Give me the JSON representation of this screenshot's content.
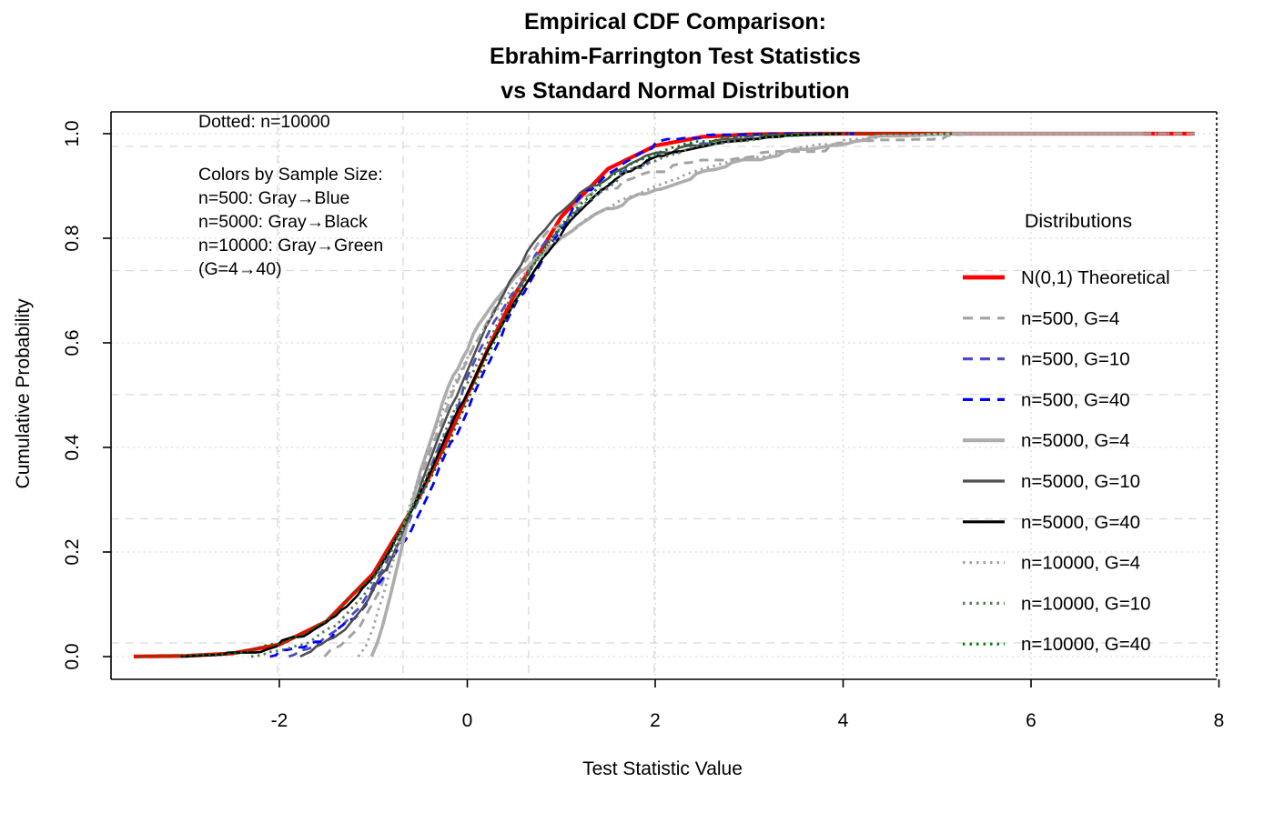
{
  "figure": {
    "title_lines": [
      "Empirical CDF Comparison:",
      "Ebrahim-Farrington Test Statistics",
      "vs Standard Normal Distribution"
    ],
    "annotations": {
      "dotted_note": "Dotted: n=10000",
      "color_key": [
        "Colors by Sample Size:",
        "n=500: Gray→Blue",
        "n=5000: Gray→Black",
        "n=10000: Gray→Green",
        "(G=4→40)"
      ]
    },
    "legend": {
      "header": "Distributions"
    },
    "colors": {
      "grid": "#D9D9D9",
      "box": "#000000",
      "theoretical": "#FF0000"
    }
  },
  "chart_data": {
    "type": "line",
    "title": "Empirical CDF Comparison: Ebrahim-Farrington Test Statistics vs Standard Normal Distribution",
    "xlabel": "Test Statistic Value",
    "ylabel": "Cumulative Probability",
    "xlim": [
      -3.8,
      8.1
    ],
    "ylim": [
      -0.04,
      1.04
    ],
    "x_ticks": [
      -2,
      0,
      2,
      4,
      6,
      8
    ],
    "x_tick_labels": [
      "-2",
      "0",
      "2",
      "4",
      "6",
      "8"
    ],
    "y_ticks": [
      0.0,
      0.2,
      0.4,
      0.6,
      0.8,
      1.0
    ],
    "y_tick_labels": [
      "0.0",
      "0.2",
      "0.4",
      "0.6",
      "0.8",
      "1.0"
    ],
    "grid": "light-gray dotted at ticks plus light-gray dashed secondary grid",
    "legend_position": "right",
    "series": [
      {
        "name": "N(0,1) Theoretical",
        "color": "#FF0000",
        "linetype": "solid",
        "width": 4.2,
        "noise": 0,
        "points": [
          [
            -3.55,
            0.0002
          ],
          [
            -3,
            0.0013
          ],
          [
            -2.5,
            0.006
          ],
          [
            -2,
            0.023
          ],
          [
            -1.5,
            0.067
          ],
          [
            -1,
            0.159
          ],
          [
            -0.5,
            0.309
          ],
          [
            -0.25,
            0.4
          ],
          [
            0,
            0.5
          ],
          [
            0.25,
            0.6
          ],
          [
            0.5,
            0.691
          ],
          [
            1,
            0.841
          ],
          [
            1.5,
            0.933
          ],
          [
            2,
            0.977
          ],
          [
            2.5,
            0.994
          ],
          [
            3,
            0.9987
          ],
          [
            3.6,
            1
          ],
          [
            7.74,
            1
          ]
        ]
      },
      {
        "name": "n=500, G=4",
        "color": "#A3A3A3",
        "linetype": "dashed",
        "width": 3,
        "noise": 0.01,
        "points": [
          [
            -1.52,
            0
          ],
          [
            -1.35,
            0.015
          ],
          [
            -1.15,
            0.05
          ],
          [
            -0.95,
            0.115
          ],
          [
            -0.75,
            0.21
          ],
          [
            -0.55,
            0.315
          ],
          [
            -0.35,
            0.415
          ],
          [
            -0.15,
            0.505
          ],
          [
            0.05,
            0.585
          ],
          [
            0.35,
            0.685
          ],
          [
            0.65,
            0.765
          ],
          [
            0.95,
            0.83
          ],
          [
            1.25,
            0.872
          ],
          [
            1.6,
            0.9
          ],
          [
            2,
            0.923
          ],
          [
            2.5,
            0.942
          ],
          [
            3,
            0.955
          ],
          [
            3.5,
            0.965
          ],
          [
            4,
            0.978
          ],
          [
            4.5,
            0.988
          ],
          [
            5,
            0.995
          ],
          [
            5.4,
            1
          ],
          [
            7.74,
            1
          ]
        ]
      },
      {
        "name": "n=500, G=10",
        "color": "#4B4BC8",
        "linetype": "dashed",
        "width": 2.8,
        "noise": 0.01,
        "points": [
          [
            -1.9,
            0
          ],
          [
            -1.65,
            0.015
          ],
          [
            -1.4,
            0.045
          ],
          [
            -1.15,
            0.095
          ],
          [
            -0.9,
            0.165
          ],
          [
            -0.65,
            0.25
          ],
          [
            -0.4,
            0.35
          ],
          [
            -0.15,
            0.465
          ],
          [
            0.1,
            0.565
          ],
          [
            0.35,
            0.655
          ],
          [
            0.6,
            0.73
          ],
          [
            0.9,
            0.8
          ],
          [
            1.2,
            0.862
          ],
          [
            1.5,
            0.905
          ],
          [
            1.9,
            0.945
          ],
          [
            2.3,
            0.968
          ],
          [
            2.8,
            0.985
          ],
          [
            3.3,
            0.994
          ],
          [
            3.8,
            1
          ]
        ]
      },
      {
        "name": "n=500, G=40",
        "color": "#0000FF",
        "linetype": "dashed",
        "width": 2.8,
        "noise": 0.01,
        "points": [
          [
            -2.1,
            0
          ],
          [
            -1.8,
            0.012
          ],
          [
            -1.5,
            0.038
          ],
          [
            -1.2,
            0.082
          ],
          [
            -0.9,
            0.148
          ],
          [
            -0.6,
            0.238
          ],
          [
            -0.3,
            0.352
          ],
          [
            0,
            0.472
          ],
          [
            0.3,
            0.592
          ],
          [
            0.6,
            0.7
          ],
          [
            0.9,
            0.795
          ],
          [
            1.2,
            0.872
          ],
          [
            1.5,
            0.932
          ],
          [
            1.9,
            0.973
          ],
          [
            2.3,
            0.991
          ],
          [
            2.8,
            0.998
          ],
          [
            3.4,
            1
          ],
          [
            4.2,
            1
          ]
        ]
      },
      {
        "name": "n=5000, G=4",
        "color": "#ADADAD",
        "linetype": "solid",
        "width": 3.6,
        "noise": 0.006,
        "points": [
          [
            -1.02,
            0
          ],
          [
            -0.96,
            0.025
          ],
          [
            -0.9,
            0.06
          ],
          [
            -0.82,
            0.115
          ],
          [
            -0.74,
            0.175
          ],
          [
            -0.65,
            0.245
          ],
          [
            -0.55,
            0.315
          ],
          [
            -0.45,
            0.385
          ],
          [
            -0.33,
            0.45
          ],
          [
            -0.2,
            0.515
          ],
          [
            -0.05,
            0.575
          ],
          [
            0.12,
            0.63
          ],
          [
            0.3,
            0.675
          ],
          [
            0.5,
            0.72
          ],
          [
            0.75,
            0.765
          ],
          [
            1,
            0.8
          ],
          [
            1.3,
            0.835
          ],
          [
            1.6,
            0.862
          ],
          [
            2,
            0.895
          ],
          [
            2.5,
            0.925
          ],
          [
            3,
            0.948
          ],
          [
            3.5,
            0.965
          ],
          [
            4,
            0.982
          ],
          [
            4.4,
            0.992
          ],
          [
            4.9,
            0.998
          ],
          [
            5.2,
            1
          ],
          [
            7.2,
            1
          ]
        ]
      },
      {
        "name": "n=5000, G=10",
        "color": "#4F4F4F",
        "linetype": "solid",
        "width": 2.6,
        "noise": 0.006,
        "points": [
          [
            -1.78,
            0
          ],
          [
            -1.55,
            0.018
          ],
          [
            -1.3,
            0.05
          ],
          [
            -1.05,
            0.105
          ],
          [
            -0.8,
            0.195
          ],
          [
            -0.55,
            0.3
          ],
          [
            -0.3,
            0.42
          ],
          [
            -0.05,
            0.53
          ],
          [
            0.2,
            0.635
          ],
          [
            0.45,
            0.72
          ],
          [
            0.7,
            0.785
          ],
          [
            0.95,
            0.84
          ],
          [
            1.2,
            0.882
          ],
          [
            1.5,
            0.918
          ],
          [
            1.9,
            0.952
          ],
          [
            2.3,
            0.973
          ],
          [
            2.8,
            0.988
          ],
          [
            3.3,
            0.996
          ],
          [
            3.6,
            1
          ]
        ]
      },
      {
        "name": "n=5000, G=40",
        "color": "#000000",
        "linetype": "solid",
        "width": 2.6,
        "noise": 0.005,
        "points": [
          [
            -3.05,
            0
          ],
          [
            -2.6,
            0.004
          ],
          [
            -2.2,
            0.013
          ],
          [
            -1.8,
            0.036
          ],
          [
            -1.4,
            0.078
          ],
          [
            -1,
            0.152
          ],
          [
            -0.7,
            0.24
          ],
          [
            -0.4,
            0.35
          ],
          [
            -0.1,
            0.47
          ],
          [
            0.2,
            0.582
          ],
          [
            0.5,
            0.678
          ],
          [
            0.8,
            0.762
          ],
          [
            1.1,
            0.832
          ],
          [
            1.4,
            0.888
          ],
          [
            1.8,
            0.938
          ],
          [
            2.2,
            0.968
          ],
          [
            2.7,
            0.987
          ],
          [
            3.2,
            0.995
          ],
          [
            4,
            1
          ]
        ]
      },
      {
        "name": "n=10000, G=4",
        "color": "#A3A3A3",
        "linetype": "dotted",
        "width": 2.8,
        "noise": 0.004,
        "points": [
          [
            -1.16,
            0
          ],
          [
            -1.08,
            0.022
          ],
          [
            -1,
            0.058
          ],
          [
            -0.9,
            0.112
          ],
          [
            -0.8,
            0.175
          ],
          [
            -0.68,
            0.25
          ],
          [
            -0.55,
            0.325
          ],
          [
            -0.42,
            0.395
          ],
          [
            -0.28,
            0.46
          ],
          [
            -0.12,
            0.525
          ],
          [
            0.05,
            0.585
          ],
          [
            0.25,
            0.645
          ],
          [
            0.5,
            0.71
          ],
          [
            0.75,
            0.762
          ],
          [
            1,
            0.803
          ],
          [
            1.3,
            0.84
          ],
          [
            1.6,
            0.868
          ],
          [
            2,
            0.9
          ],
          [
            2.5,
            0.93
          ],
          [
            3,
            0.952
          ],
          [
            3.5,
            0.97
          ],
          [
            4,
            0.985
          ],
          [
            4.5,
            0.993
          ],
          [
            5,
            0.998
          ],
          [
            5.3,
            1
          ],
          [
            7.74,
            1
          ]
        ]
      },
      {
        "name": "n=10000, G=10",
        "color": "#537E53",
        "linetype": "dotted",
        "width": 2.8,
        "noise": 0.004,
        "points": [
          [
            -2.3,
            0
          ],
          [
            -2,
            0.008
          ],
          [
            -1.7,
            0.025
          ],
          [
            -1.4,
            0.06
          ],
          [
            -1.1,
            0.118
          ],
          [
            -0.8,
            0.205
          ],
          [
            -0.5,
            0.32
          ],
          [
            -0.2,
            0.445
          ],
          [
            0.1,
            0.56
          ],
          [
            0.4,
            0.665
          ],
          [
            0.7,
            0.752
          ],
          [
            1,
            0.822
          ],
          [
            1.3,
            0.875
          ],
          [
            1.7,
            0.925
          ],
          [
            2.1,
            0.958
          ],
          [
            2.6,
            0.981
          ],
          [
            3.1,
            0.992
          ],
          [
            3.7,
            0.998
          ],
          [
            4.4,
            1
          ]
        ]
      },
      {
        "name": "n=10000, G=40",
        "color": "#0A7A0A",
        "linetype": "dotted",
        "width": 2.8,
        "noise": 0.003,
        "points": [
          [
            -3.5,
            0
          ],
          [
            -3,
            0.002
          ],
          [
            -2.5,
            0.007
          ],
          [
            -2,
            0.024
          ],
          [
            -1.5,
            0.068
          ],
          [
            -1,
            0.158
          ],
          [
            -0.5,
            0.305
          ],
          [
            -0.2,
            0.41
          ],
          [
            0.1,
            0.53
          ],
          [
            0.4,
            0.645
          ],
          [
            0.7,
            0.745
          ],
          [
            1,
            0.825
          ],
          [
            1.4,
            0.9
          ],
          [
            1.8,
            0.948
          ],
          [
            2.2,
            0.975
          ],
          [
            2.7,
            0.991
          ],
          [
            3.2,
            0.997
          ],
          [
            3.8,
            1
          ],
          [
            5.2,
            1
          ]
        ]
      }
    ]
  }
}
